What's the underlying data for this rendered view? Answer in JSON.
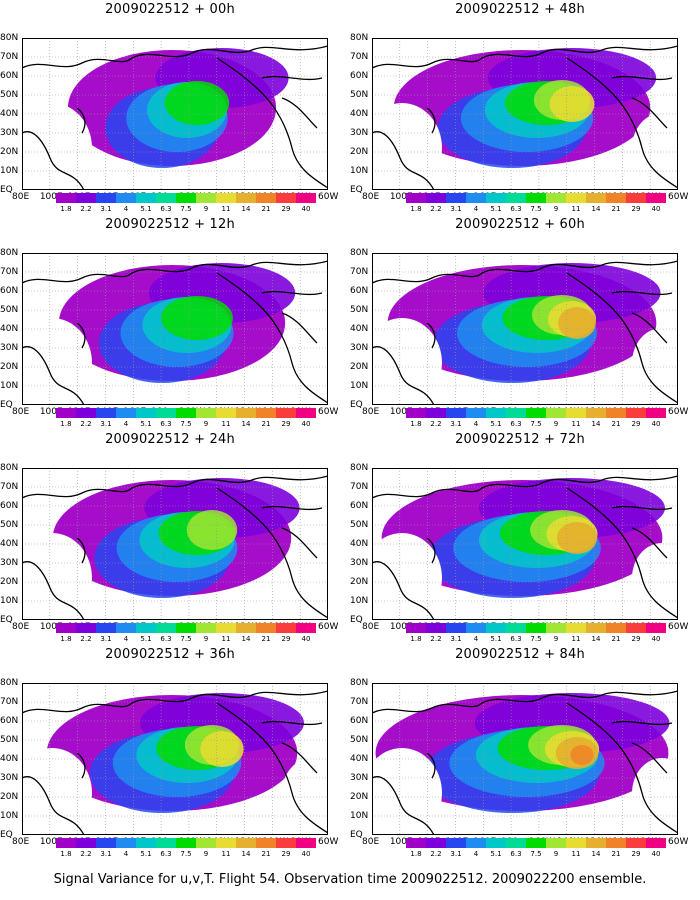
{
  "panels": [
    {
      "title": "2009022512 + 00h",
      "level": 0.15
    },
    {
      "title": "2009022512 + 48h",
      "level": 0.55
    },
    {
      "title": "2009022512 + 12h",
      "level": 0.3
    },
    {
      "title": "2009022512 + 60h",
      "level": 0.65
    },
    {
      "title": "2009022512 + 24h",
      "level": 0.4
    },
    {
      "title": "2009022512 + 72h",
      "level": 0.75
    },
    {
      "title": "2009022512 + 36h",
      "level": 0.5
    },
    {
      "title": "2009022512 + 84h",
      "level": 0.85
    }
  ],
  "lat_labels": [
    "80N",
    "70N",
    "60N",
    "50N",
    "40N",
    "30N",
    "20N",
    "10N",
    "EQ"
  ],
  "lon_labels": [
    "80E",
    "100E",
    "120E",
    "140E",
    "160E",
    "180",
    "160W",
    "140W",
    "120W",
    "100W",
    "80W",
    "60W"
  ],
  "colorbar": {
    "labels": [
      "1.8",
      "2.2",
      "3.1",
      "4",
      "5.1",
      "6.3",
      "7.5",
      "9",
      "11",
      "14",
      "21",
      "29",
      "40"
    ],
    "colors": [
      "#a000c8",
      "#7d00dc",
      "#2846f0",
      "#1e8cf0",
      "#00c8c8",
      "#00dc96",
      "#00dc00",
      "#a0e632",
      "#e6dc32",
      "#e6af2d",
      "#f08228",
      "#fa3c3c",
      "#f00082"
    ]
  },
  "caption": "Signal Variance for u,v,T. Flight 54. Observation time 2009022512. 2009022200 ensemble."
}
